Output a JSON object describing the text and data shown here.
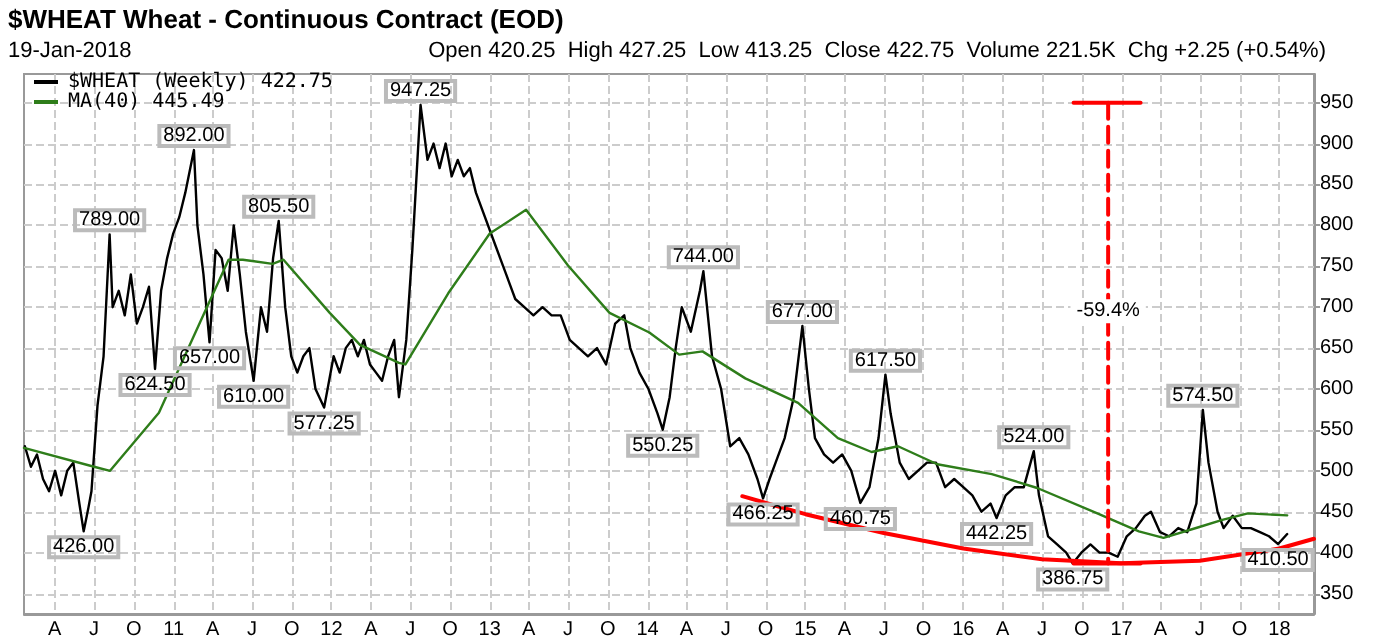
{
  "chart_data": {
    "type": "line",
    "title": "$WHEAT Wheat - Continuous Contract (EOD)",
    "subtitle": "19-Jan-2018",
    "annotations": [
      "Open 420.25  High 427.25  Low 413.25  Close 422.75  Volume 221.5K  Chg +2.25 (+0.54%)",
      {
        "text": "426.00",
        "x": "2010-06-07",
        "y": 426
      },
      {
        "text": "789.00",
        "x": "2010-08-06",
        "y": 789
      },
      {
        "text": "624.50",
        "x": "2010-11-19",
        "y": 624.5
      },
      {
        "text": "892.00",
        "x": "2011-02-17",
        "y": 892
      },
      {
        "text": "657.00",
        "x": "2011-03-25",
        "y": 657
      },
      {
        "text": "610.00",
        "x": "2011-07-05",
        "y": 610
      },
      {
        "text": "805.50",
        "x": "2011-09-01",
        "y": 805.5
      },
      {
        "text": "577.25",
        "x": "2011-12-15",
        "y": 577.25
      },
      {
        "text": "947.25",
        "x": "2012-07-25",
        "y": 947.25
      },
      {
        "text": "550.25",
        "x": "2014-02-05",
        "y": 550.25
      },
      {
        "text": "744.00",
        "x": "2014-05-10",
        "y": 744
      },
      {
        "text": "466.25",
        "x": "2014-09-25",
        "y": 466.25
      },
      {
        "text": "677.00",
        "x": "2014-12-25",
        "y": 677
      },
      {
        "text": "460.75",
        "x": "2015-05-08",
        "y": 460.75
      },
      {
        "text": "617.50",
        "x": "2015-07-05",
        "y": 617.5
      },
      {
        "text": "442.25",
        "x": "2016-03-18",
        "y": 442.25
      },
      {
        "text": "524.00",
        "x": "2016-06-12",
        "y": 524
      },
      {
        "text": "386.75",
        "x": "2016-09-10",
        "y": 386.75
      },
      {
        "text": "574.50",
        "x": "2017-07-08",
        "y": 574.5
      },
      {
        "text": "410.50",
        "x": "2017-12-29",
        "y": 410.5
      },
      {
        "text": "-59.4%",
        "x": "2016-12-01",
        "y": 695
      }
    ],
    "xlim": [
      "2010-01-20",
      "2018-03-22"
    ],
    "xticks": [
      {
        "value": "2010-04-01",
        "label": "A"
      },
      {
        "value": "2010-07-01",
        "label": "J"
      },
      {
        "value": "2010-10-01",
        "label": "O"
      },
      {
        "value": "2011-01-01",
        "label": "11"
      },
      {
        "value": "2011-04-01",
        "label": "A"
      },
      {
        "value": "2011-07-01",
        "label": "J"
      },
      {
        "value": "2011-10-01",
        "label": "O"
      },
      {
        "value": "2012-01-01",
        "label": "12"
      },
      {
        "value": "2012-04-01",
        "label": "A"
      },
      {
        "value": "2012-07-01",
        "label": "J"
      },
      {
        "value": "2012-10-01",
        "label": "O"
      },
      {
        "value": "2013-01-01",
        "label": "13"
      },
      {
        "value": "2013-04-01",
        "label": "A"
      },
      {
        "value": "2013-07-01",
        "label": "J"
      },
      {
        "value": "2013-10-01",
        "label": "O"
      },
      {
        "value": "2014-01-01",
        "label": "14"
      },
      {
        "value": "2014-04-01",
        "label": "A"
      },
      {
        "value": "2014-07-01",
        "label": "J"
      },
      {
        "value": "2014-10-01",
        "label": "O"
      },
      {
        "value": "2015-01-01",
        "label": "15"
      },
      {
        "value": "2015-04-01",
        "label": "A"
      },
      {
        "value": "2015-07-01",
        "label": "J"
      },
      {
        "value": "2015-10-01",
        "label": "O"
      },
      {
        "value": "2016-01-01",
        "label": "16"
      },
      {
        "value": "2016-04-01",
        "label": "A"
      },
      {
        "value": "2016-07-01",
        "label": "J"
      },
      {
        "value": "2016-10-01",
        "label": "O"
      },
      {
        "value": "2017-01-01",
        "label": "17"
      },
      {
        "value": "2017-04-01",
        "label": "A"
      },
      {
        "value": "2017-07-01",
        "label": "J"
      },
      {
        "value": "2017-10-01",
        "label": "O"
      },
      {
        "value": "2018-01-01",
        "label": "18"
      }
    ],
    "ylim": [
      325,
      985
    ],
    "yticks": [
      350,
      400,
      450,
      500,
      550,
      600,
      650,
      700,
      750,
      800,
      850,
      900,
      950
    ],
    "grid": true,
    "legend": "top left",
    "marker": "none",
    "series": [
      {
        "name": "$WHEAT (Weekly) 422.75",
        "color": "#000000",
        "x": [
          "2010-01-22",
          "2010-02-05",
          "2010-02-19",
          "2010-03-05",
          "2010-03-19",
          "2010-04-02",
          "2010-04-16",
          "2010-04-30",
          "2010-05-14",
          "2010-05-28",
          "2010-06-07",
          "2010-06-18",
          "2010-06-25",
          "2010-07-09",
          "2010-07-23",
          "2010-08-06",
          "2010-08-13",
          "2010-08-27",
          "2010-09-10",
          "2010-09-24",
          "2010-10-08",
          "2010-10-22",
          "2010-11-05",
          "2010-11-19",
          "2010-12-03",
          "2010-12-17",
          "2010-12-31",
          "2011-01-14",
          "2011-01-28",
          "2011-02-17",
          "2011-02-25",
          "2011-03-11",
          "2011-03-25",
          "2011-04-08",
          "2011-04-22",
          "2011-05-06",
          "2011-05-20",
          "2011-06-03",
          "2011-06-17",
          "2011-07-05",
          "2011-07-22",
          "2011-08-05",
          "2011-08-19",
          "2011-09-01",
          "2011-09-16",
          "2011-09-30",
          "2011-10-14",
          "2011-10-28",
          "2011-11-11",
          "2011-11-25",
          "2011-12-15",
          "2012-01-06",
          "2012-01-20",
          "2012-02-03",
          "2012-02-17",
          "2012-03-02",
          "2012-03-16",
          "2012-03-30",
          "2012-04-13",
          "2012-04-27",
          "2012-05-11",
          "2012-05-25",
          "2012-06-05",
          "2012-06-22",
          "2012-07-06",
          "2012-07-25",
          "2012-08-10",
          "2012-08-24",
          "2012-09-07",
          "2012-09-21",
          "2012-10-05",
          "2012-10-19",
          "2012-11-02",
          "2012-11-16",
          "2012-11-30",
          "2013-01-11",
          "2013-01-25",
          "2013-02-08",
          "2013-03-01",
          "2013-03-22",
          "2013-04-12",
          "2013-05-03",
          "2013-05-24",
          "2013-06-14",
          "2013-07-05",
          "2013-07-26",
          "2013-08-16",
          "2013-09-06",
          "2013-09-27",
          "2013-10-18",
          "2013-11-08",
          "2013-11-22",
          "2013-12-13",
          "2014-01-03",
          "2014-01-24",
          "2014-02-05",
          "2014-02-21",
          "2014-03-07",
          "2014-03-21",
          "2014-04-11",
          "2014-05-02",
          "2014-05-10",
          "2014-05-30",
          "2014-06-20",
          "2014-07-11",
          "2014-08-01",
          "2014-08-22",
          "2014-09-12",
          "2014-09-25",
          "2014-10-10",
          "2014-10-24",
          "2014-11-14",
          "2014-12-05",
          "2014-12-25",
          "2015-01-09",
          "2015-01-23",
          "2015-02-13",
          "2015-03-06",
          "2015-03-27",
          "2015-04-17",
          "2015-05-08",
          "2015-05-29",
          "2015-06-19",
          "2015-07-05",
          "2015-07-17",
          "2015-08-07",
          "2015-08-28",
          "2015-09-18",
          "2015-10-09",
          "2015-10-30",
          "2015-11-20",
          "2015-12-11",
          "2016-01-01",
          "2016-01-22",
          "2016-02-12",
          "2016-03-04",
          "2016-03-18",
          "2016-04-08",
          "2016-04-29",
          "2016-05-20",
          "2016-06-12",
          "2016-06-24",
          "2016-07-15",
          "2016-08-05",
          "2016-08-26",
          "2016-09-10",
          "2016-09-30",
          "2016-10-21",
          "2016-11-11",
          "2016-12-02",
          "2016-12-23",
          "2017-01-13",
          "2017-02-03",
          "2017-02-24",
          "2017-03-10",
          "2017-03-31",
          "2017-04-21",
          "2017-05-12",
          "2017-06-02",
          "2017-06-23",
          "2017-07-08",
          "2017-07-21",
          "2017-08-11",
          "2017-08-25",
          "2017-09-15",
          "2017-10-06",
          "2017-10-27",
          "2017-11-17",
          "2017-12-08",
          "2017-12-29",
          "2018-01-19"
        ],
        "values": [
          530,
          505,
          520,
          490,
          475,
          500,
          470,
          500,
          510,
          460,
          426,
          455,
          475,
          580,
          640,
          789,
          700,
          720,
          690,
          740,
          680,
          700,
          725,
          624.5,
          720,
          760,
          790,
          810,
          840,
          892,
          800,
          740,
          657,
          770,
          760,
          720,
          800,
          740,
          670,
          610,
          700,
          670,
          760,
          805.5,
          700,
          640,
          620,
          640,
          650,
          600,
          577.25,
          640,
          620,
          650,
          660,
          640,
          660,
          630,
          620,
          610,
          640,
          660,
          590,
          660,
          770,
          947.25,
          880,
          900,
          870,
          900,
          860,
          880,
          860,
          870,
          840,
          780,
          760,
          740,
          710,
          700,
          690,
          700,
          690,
          690,
          660,
          650,
          640,
          650,
          630,
          680,
          690,
          650,
          620,
          600,
          570,
          550.25,
          590,
          650,
          700,
          670,
          720,
          744,
          640,
          600,
          530,
          540,
          520,
          490,
          466.25,
          490,
          510,
          540,
          590,
          677,
          600,
          540,
          520,
          510,
          520,
          500,
          460.75,
          480,
          540,
          617.5,
          570,
          510,
          490,
          500,
          510,
          510,
          480,
          490,
          480,
          470,
          450,
          460,
          442.25,
          470,
          480,
          480,
          524,
          470,
          420,
          410,
          400,
          386.75,
          400,
          410,
          400,
          400,
          395,
          420,
          430,
          445,
          450,
          425,
          420,
          430,
          425,
          460,
          574.5,
          510,
          450,
          430,
          445,
          430,
          430,
          425,
          420,
          410.5,
          422.75
        ]
      },
      {
        "name": "MA(40) 445.49",
        "color": "#2e7d1a",
        "x": [
          "2010-01-20",
          "2010-07-01",
          "2010-08-07",
          "2010-11-28",
          "2011-02-28",
          "2011-05-08",
          "2011-06-10",
          "2011-08-18",
          "2011-09-12",
          "2011-12-28",
          "2012-03-07",
          "2012-06-05",
          "2012-06-20",
          "2012-09-27",
          "2013-01-01",
          "2013-03-26",
          "2013-07-01",
          "2013-10-05",
          "2014-01-05",
          "2014-03-15",
          "2014-05-08",
          "2014-08-15",
          "2014-12-15",
          "2015-03-17",
          "2015-06-03",
          "2015-08-03",
          "2015-11-02",
          "2016-03-07",
          "2016-06-20",
          "2016-11-06",
          "2017-02-10",
          "2017-04-08",
          "2017-06-28",
          "2017-08-22",
          "2017-10-20",
          "2018-01-19"
        ],
        "values": [
          528,
          505,
          500,
          571,
          678,
          758,
          758,
          753,
          758,
          693,
          654,
          632,
          630,
          717,
          790,
          819,
          751,
          693,
          669,
          642,
          646,
          613,
          583,
          540,
          523,
          530,
          508,
          496,
          479,
          448,
          426,
          418,
          431,
          440,
          448,
          445.49
        ]
      },
      {
        "color": "#ff0000",
        "x": [
          "2014-08-08",
          "2015-01-01",
          "2015-07-01",
          "2016-01-01",
          "2016-07-01",
          "2016-12-31",
          "2017-07-01",
          "2018-01-01",
          "2018-03-22"
        ],
        "values": [
          469,
          447,
          424,
          405,
          392,
          387,
          390,
          405,
          417
        ]
      },
      {
        "color": "#ff0000",
        "line_style": "dashed",
        "x": [
          "2016-12-01",
          "2016-12-01"
        ],
        "values": [
          950,
          386.75
        ]
      },
      {
        "color": "#ff0000",
        "x": [
          "2016-09-12",
          "2017-02-14"
        ],
        "values": [
          950,
          950
        ]
      },
      {
        "color": "#ff0000",
        "x": [
          "2016-09-12",
          "2017-02-14"
        ],
        "values": [
          386.75,
          386.75
        ]
      }
    ]
  }
}
